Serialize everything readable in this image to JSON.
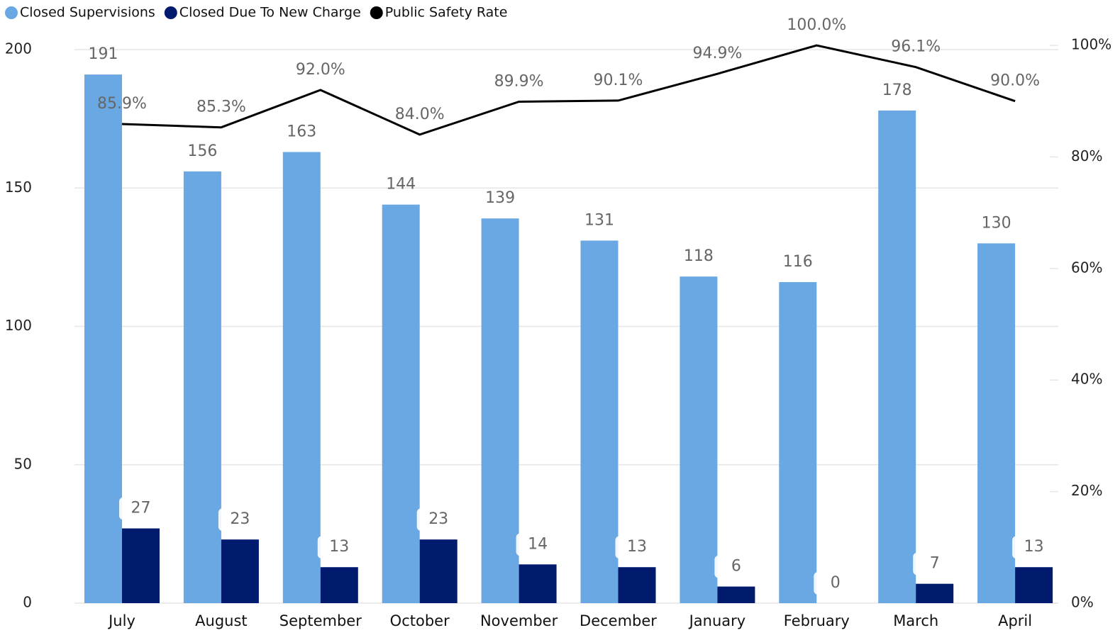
{
  "chart_data": {
    "type": "bar+line",
    "categories": [
      "July",
      "August",
      "September",
      "October",
      "November",
      "December",
      "January",
      "February",
      "March",
      "April"
    ],
    "series": [
      {
        "name": "Closed Supervisions",
        "color": "#69a8e3",
        "type": "bar",
        "values": [
          191,
          156,
          163,
          144,
          139,
          131,
          118,
          116,
          178,
          130
        ]
      },
      {
        "name": "Closed Due To New Charge",
        "color": "#001a6e",
        "type": "bar",
        "values": [
          27,
          23,
          13,
          23,
          14,
          13,
          6,
          0,
          7,
          13
        ]
      },
      {
        "name": "Public Safety Rate",
        "color": "#000000",
        "type": "line",
        "axis": "y2",
        "values": [
          85.9,
          85.3,
          92.0,
          84.0,
          89.9,
          90.1,
          94.9,
          100.0,
          96.1,
          90.0
        ],
        "value_labels": [
          "85.9%",
          "85.3%",
          "92.0%",
          "84.0%",
          "89.9%",
          "90.1%",
          "94.9%",
          "100.0%",
          "96.1%",
          "90.0%"
        ]
      }
    ],
    "ylim": [
      0,
      200
    ],
    "yticks": [
      0,
      50,
      100,
      150,
      200
    ],
    "y2lim": [
      0,
      100
    ],
    "y2ticks": [
      {
        "value": 0,
        "label": "0%"
      },
      {
        "value": 20,
        "label": "20%"
      },
      {
        "value": 40,
        "label": "40%"
      },
      {
        "value": 60,
        "label": "60%"
      },
      {
        "value": 80,
        "label": "80%"
      },
      {
        "value": 100,
        "label": "100%"
      }
    ],
    "grid": true,
    "legend": "top-left"
  }
}
